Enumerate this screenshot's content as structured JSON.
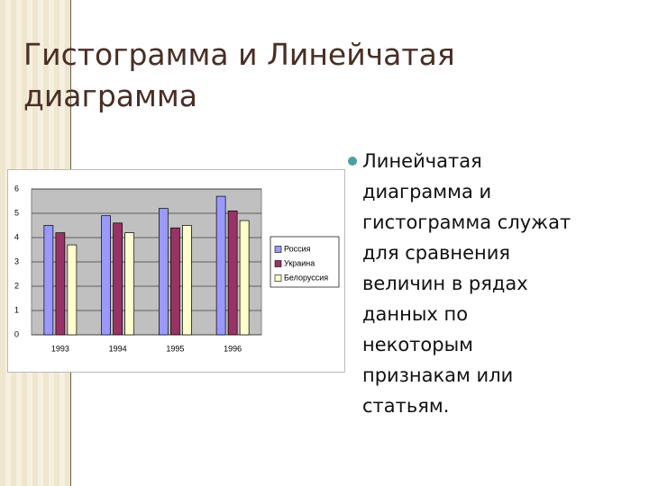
{
  "title_lines": [
    "Гистограмма и Линейчатая",
    "диаграмма"
  ],
  "bullet_lines": [
    "Линейчатая",
    "диаграмма и",
    "гистограмма служат",
    "для сравнения",
    "величин в рядах",
    "данных по",
    "некоторым",
    "признакам или",
    "статьям."
  ],
  "chart_data": {
    "type": "bar",
    "categories": [
      "1993",
      "1994",
      "1995",
      "1996"
    ],
    "series": [
      {
        "name": "Россия",
        "color": "#9999ff",
        "values": [
          4.5,
          4.9,
          5.2,
          5.7
        ]
      },
      {
        "name": "Украина",
        "color": "#993366",
        "values": [
          4.2,
          4.6,
          4.4,
          5.1
        ]
      },
      {
        "name": "Белоруссия",
        "color": "#ffffcc",
        "values": [
          3.7,
          4.2,
          4.5,
          4.7
        ]
      }
    ],
    "ylim": [
      0,
      6
    ],
    "yticks": [
      0,
      1,
      2,
      3,
      4,
      5,
      6
    ],
    "grid": true,
    "legend": "right"
  }
}
